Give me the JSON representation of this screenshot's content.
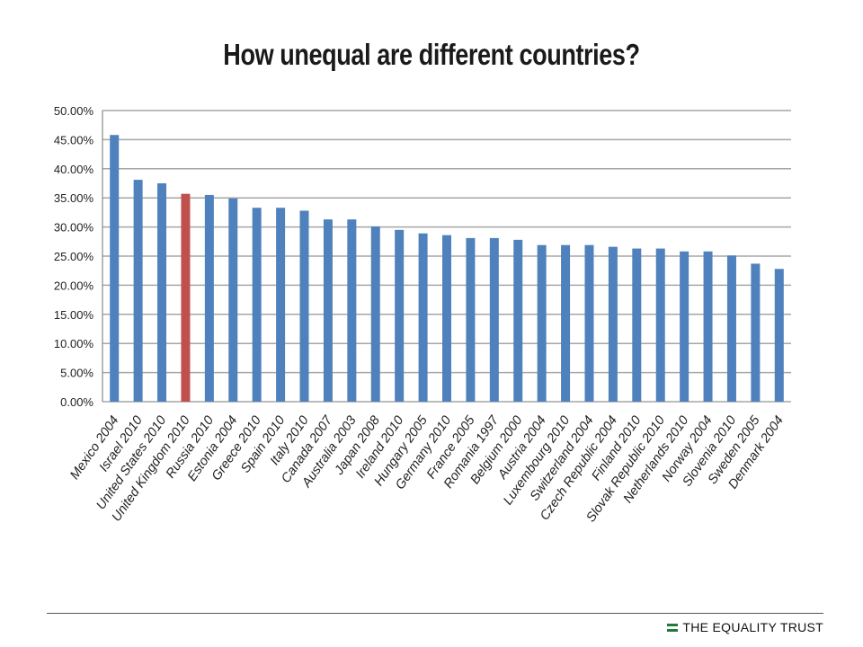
{
  "title": "How unequal are different countries?",
  "brand": {
    "name": "THE EQUALITY TRUST",
    "logo_icon": "equality-trust-logo-icon",
    "color": "#1f7a3c"
  },
  "colors": {
    "bar": "#4f81bd",
    "highlight": "#c0504d",
    "grid": "#a6a6a6"
  },
  "chart_data": {
    "type": "bar",
    "title": "How unequal are different countries?",
    "xlabel": "",
    "ylabel": "",
    "ylim": [
      0,
      50
    ],
    "y_ticks": [
      "0.00%",
      "5.00%",
      "10.00%",
      "15.00%",
      "20.00%",
      "25.00%",
      "30.00%",
      "35.00%",
      "40.00%",
      "45.00%",
      "50.00%"
    ],
    "grid": true,
    "legend": "none",
    "highlighted_category": "United Kingdom 2010",
    "categories": [
      "Mexico 2004",
      "Israel 2010",
      "United States 2010",
      "United Kingdom 2010",
      "Russia 2010",
      "Estonia 2004",
      "Greece 2010",
      "Spain 2010",
      "Italy 2010",
      "Canada 2007",
      "Australia 2003",
      "Japan 2008",
      "Ireland 2010",
      "Hungary 2005",
      "Germany 2010",
      "France 2005",
      "Romania 1997",
      "Belgium 2000",
      "Austria 2004",
      "Luxembourg 2010",
      "Switzerland 2004",
      "Czech Republic 2004",
      "Finland 2010",
      "Slovak Republic 2010",
      "Netherlands 2010",
      "Norway 2004",
      "Slovenia 2010",
      "Sweden 2005",
      "Denmark 2004"
    ],
    "values": [
      45.8,
      38.1,
      37.5,
      35.7,
      35.5,
      34.9,
      33.3,
      33.3,
      32.8,
      31.3,
      31.3,
      30.1,
      29.5,
      28.9,
      28.6,
      28.1,
      28.1,
      27.8,
      26.9,
      26.9,
      26.9,
      26.6,
      26.3,
      26.3,
      25.8,
      25.8,
      25.1,
      23.7,
      22.8
    ]
  }
}
